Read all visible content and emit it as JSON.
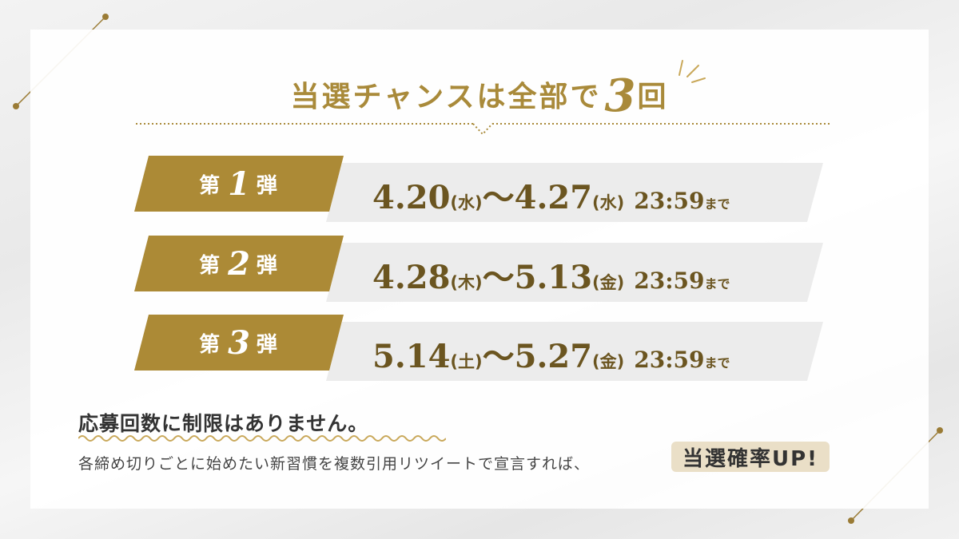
{
  "headline": {
    "before": "当選チャンスは全部で",
    "number": "3",
    "after": "回"
  },
  "rounds": [
    {
      "prefix": "第",
      "number": "1",
      "suffix": "弾",
      "start_date": "4.20",
      "start_day": "(水)",
      "sep": "〜",
      "end_date": "4.27",
      "end_day": "(水)",
      "time": "23:59",
      "time_suffix": "まで"
    },
    {
      "prefix": "第",
      "number": "2",
      "suffix": "弾",
      "start_date": "4.28",
      "start_day": "(木)",
      "sep": "〜",
      "end_date": "5.13",
      "end_day": "(金)",
      "time": "23:59",
      "time_suffix": "まで"
    },
    {
      "prefix": "第",
      "number": "3",
      "suffix": "弾",
      "start_date": "5.14",
      "start_day": "(土)",
      "sep": "〜",
      "end_date": "5.27",
      "end_day": "(金)",
      "time": "23:59",
      "time_suffix": "まで"
    }
  ],
  "notice": "応募回数に制限はありません。",
  "description": "各締め切りごとに始めたい新習慣を複数引用リツイートで宣言すれば、",
  "highlight": "当選確率UP!",
  "colors": {
    "gold": "#ac8a36",
    "gold_text": "#a98a3a",
    "date_text": "#6b5520",
    "stripe": "#ececec",
    "highlight_bg": "#eadfc7"
  },
  "icons": [
    "sparkle-icon",
    "diagonal-line-decoration",
    "wavy-underline"
  ]
}
